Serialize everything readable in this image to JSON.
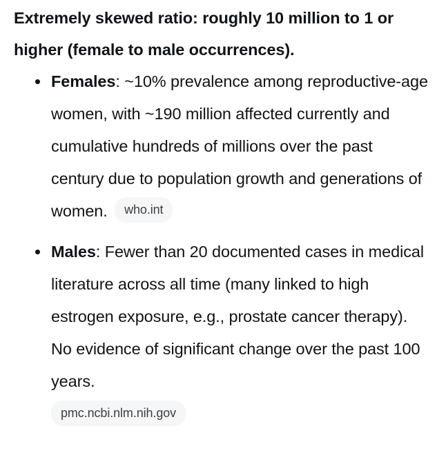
{
  "lead_text": "Extremely skewed ratio: roughly 10 million to 1 or higher (female to male occurrences).",
  "points": [
    {
      "term": "Females",
      "separator": ":",
      "text": " ~10% prevalence among reproductive-age women, with ~190 million affected currently and cumulative hundreds of millions over the past century due to population growth and generations of women.",
      "source": "who.int"
    },
    {
      "term": "Males",
      "separator": ":",
      "text": " Fewer than 20 documented cases in medical literature across all time (many linked to high estrogen exposure, e.g., prostate cancer therapy). No evidence of significant change over the past 100 years.",
      "source": "pmc.ncbi.nlm.nih.gov"
    }
  ]
}
